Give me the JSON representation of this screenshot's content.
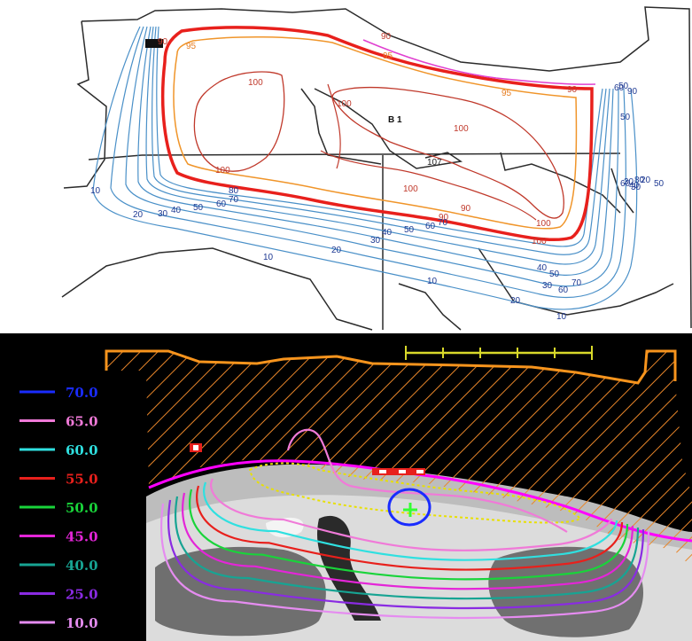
{
  "top_panel": {
    "beam_label": "B 1",
    "contour_labels": [
      {
        "text": "90",
        "color": "#c0392b"
      },
      {
        "text": "95",
        "color": "#e67e22"
      },
      {
        "text": "90",
        "color": "#c0392b"
      },
      {
        "text": "95",
        "color": "#e67e22"
      },
      {
        "text": "100",
        "color": "#c0392b"
      },
      {
        "text": "100",
        "color": "#c0392b"
      },
      {
        "text": "100",
        "color": "#c0392b"
      },
      {
        "text": "95",
        "color": "#e67e22"
      },
      {
        "text": "90",
        "color": "#c0392b"
      },
      {
        "text": "100",
        "color": "#c0392b"
      },
      {
        "text": "107",
        "color": "#222222"
      },
      {
        "text": "100",
        "color": "#c0392b"
      },
      {
        "text": "100",
        "color": "#c0392b"
      },
      {
        "text": "90",
        "color": "#c0392b"
      },
      {
        "text": "100",
        "color": "#c0392b"
      },
      {
        "text": "90",
        "color": "#c0392b"
      },
      {
        "text": "10",
        "color": "#1f3a93"
      },
      {
        "text": "20",
        "color": "#1f3a93"
      },
      {
        "text": "30",
        "color": "#1f3a93"
      },
      {
        "text": "40",
        "color": "#1f3a93"
      },
      {
        "text": "50",
        "color": "#1f3a93"
      },
      {
        "text": "60",
        "color": "#1f3a93"
      },
      {
        "text": "70",
        "color": "#1f3a93"
      },
      {
        "text": "80",
        "color": "#1f3a93"
      },
      {
        "text": "10",
        "color": "#1f3a93"
      },
      {
        "text": "20",
        "color": "#1f3a93"
      },
      {
        "text": "30",
        "color": "#1f3a93"
      },
      {
        "text": "40",
        "color": "#1f3a93"
      },
      {
        "text": "50",
        "color": "#1f3a93"
      },
      {
        "text": "60",
        "color": "#1f3a93"
      },
      {
        "text": "70",
        "color": "#1f3a93"
      },
      {
        "text": "10",
        "color": "#1f3a93"
      },
      {
        "text": "20",
        "color": "#1f3a93"
      },
      {
        "text": "30",
        "color": "#1f3a93"
      },
      {
        "text": "40",
        "color": "#1f3a93"
      },
      {
        "text": "50",
        "color": "#1f3a93"
      },
      {
        "text": "60",
        "color": "#1f3a93"
      },
      {
        "text": "70",
        "color": "#1f3a93"
      },
      {
        "text": "10",
        "color": "#1f3a93"
      },
      {
        "text": "50",
        "color": "#1f3a93"
      },
      {
        "text": "40",
        "color": "#1f3a93"
      },
      {
        "text": "30",
        "color": "#1f3a93"
      },
      {
        "text": "30",
        "color": "#1f3a93"
      },
      {
        "text": "20",
        "color": "#1f3a93"
      },
      {
        "text": "50",
        "color": "#1f3a93"
      },
      {
        "text": "60",
        "color": "#1f3a93"
      },
      {
        "text": "90",
        "color": "#1f3a93"
      },
      {
        "text": "50",
        "color": "#1f3a93"
      },
      {
        "text": "60",
        "color": "#1f3a93"
      },
      {
        "text": "80",
        "color": "#1f3a93"
      }
    ]
  },
  "legend": {
    "items": [
      {
        "value": "70.0",
        "color": "#1a2cff"
      },
      {
        "value": "65.0",
        "color": "#f07ad8"
      },
      {
        "value": "60.0",
        "color": "#2fe0e0"
      },
      {
        "value": "55.0",
        "color": "#e8201c"
      },
      {
        "value": "50.0",
        "color": "#19d43a"
      },
      {
        "value": "45.0",
        "color": "#e425d8"
      },
      {
        "value": "40.0",
        "color": "#17a493"
      },
      {
        "value": "25.0",
        "color": "#8a2be2"
      },
      {
        "value": "10.0",
        "color": "#e58cf0"
      }
    ]
  },
  "colors": {
    "body_outline": "#f7941d",
    "skin": "#ff00ff",
    "ptv": "#e8e000",
    "scale_bar": "#d8d82a",
    "iso_marker": "#33ff33"
  }
}
